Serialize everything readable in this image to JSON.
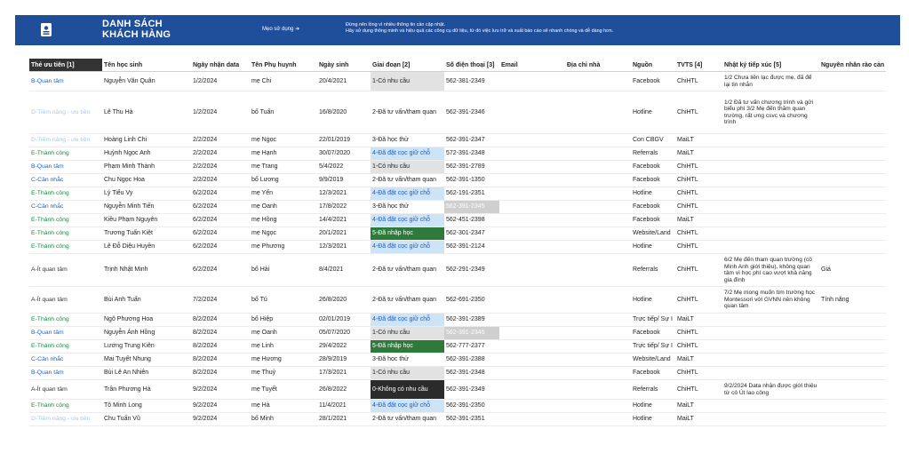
{
  "banner": {
    "title_line1": "DANH SÁCH",
    "title_line2": "KHÁCH HÀNG",
    "tip": "Mẹo sử dụng ➜",
    "note1": "Đừng nên lồng vì nhiều thông tin cần cập nhật.",
    "note2": "Hãy sử dụng thông minh và hiệu quả các công cụ dữ liệu, từ đó việc lưu trữ và xuất báo cáo sẽ nhanh chóng và dễ dàng hơn.",
    "icon": "contact-card-icon"
  },
  "columns": [
    "Thẻ ưu tiên [1]",
    "Tên học sinh",
    "Ngày nhận data",
    "Tên Phụ huynh",
    "Ngày sinh",
    "Giai đoạn [2]",
    "Số điện thoại [3]",
    "Email",
    "Địa chỉ nhà",
    "Nguồn",
    "TVTS [4]",
    "Nhật ký tiếp xúc [5]",
    "Nguyên nhân rào cản"
  ],
  "colors": {
    "priority_blue": "#1a5fd1",
    "priority_green": "#1b8a3f",
    "priority_light": "#a8c6e8",
    "stage_deposit": "#cde3f6",
    "stage_enrolled": "#2f7a3a",
    "banner": "#1f4e9a"
  },
  "rows": [
    {
      "priority": "B-Quan tâm",
      "pclass": "blue",
      "student": "Nguyễn Văn Quân",
      "date": "1/2/2024",
      "parent": "mẹ Chi",
      "dob": "20/4/2021",
      "stage": "1-Có nhu cầu",
      "sclass": "gray",
      "phone": "562-381-2349",
      "phclass": "",
      "source": "Facebook",
      "tvts": "ChiHTL",
      "log": "1/2 Chưa liên lạc được mẹ, đã để lại tin nhắn",
      "reason": "",
      "h": 22
    },
    {
      "priority": "D-Tiềm năng - ưu tiên",
      "pclass": "light",
      "student": "Lê Thu Hà",
      "date": "1/2/2024",
      "parent": "bố Tuấn",
      "dob": "16/8/2020",
      "stage": "2-Đã tư vấn/tham quan",
      "sclass": "",
      "phone": "562-391-2346",
      "phclass": "",
      "source": "Hotline",
      "tvts": "ChiHTL",
      "log": "1/2 Đã tư vấn chương trình và gửi biểu phí 3/2 Mẹ đến thăm quan trường, rất ưng csvc và chương trình",
      "reason": "",
      "h": 48
    },
    {
      "priority": "D-Tiềm năng - ưu tiên",
      "pclass": "light",
      "student": "Hoàng Linh Chi",
      "date": "2/2/2024",
      "parent": "mẹ Ngọc",
      "dob": "22/01/2019",
      "stage": "3-Đã học thử",
      "sclass": "",
      "phone": "562-391-2347",
      "phclass": "",
      "source": "Con CBGV",
      "tvts": "MaiLT",
      "log": "",
      "reason": "",
      "h": 15
    },
    {
      "priority": "E-Thành công",
      "pclass": "green",
      "student": "Huỳnh Ngọc Anh",
      "date": "2/2/2024",
      "parent": "mẹ Hạnh",
      "dob": "30/07/2020",
      "stage": "4-Đã đặt cọc giữ chỗ",
      "sclass": "lightblue",
      "phone": "572-391-2348",
      "phclass": "",
      "source": "Referrals",
      "tvts": "MaiLT",
      "log": "",
      "reason": "",
      "h": 15
    },
    {
      "priority": "B-Quan tâm",
      "pclass": "blue",
      "student": "Phạm Minh Thành",
      "date": "2/2/2024",
      "parent": "mẹ Trang",
      "dob": "5/4/2022",
      "stage": "1-Có nhu cầu",
      "sclass": "gray",
      "phone": "562-391-2789",
      "phclass": "",
      "source": "Facebook",
      "tvts": "ChiHTL",
      "log": "",
      "reason": "",
      "h": 15
    },
    {
      "priority": "C-Cân nhắc",
      "pclass": "blue",
      "student": "Chu Ngọc Hoa",
      "date": "2/2/2024",
      "parent": "bố Lương",
      "dob": "9/9/2019",
      "stage": "2-Đã tư vấn/tham quan",
      "sclass": "",
      "phone": "562-391-1350",
      "phclass": "",
      "source": "Facebook",
      "tvts": "ChiHTL",
      "log": "",
      "reason": "",
      "h": 15
    },
    {
      "priority": "E-Thành công",
      "pclass": "green",
      "student": "Lý Tiểu Vy",
      "date": "6/2/2024",
      "parent": "mẹ Yến",
      "dob": "12/3/2021",
      "stage": "4-Đã đặt cọc giữ chỗ",
      "sclass": "lightblue",
      "phone": "562-191-2351",
      "phclass": "",
      "source": "Hotline",
      "tvts": "ChiHTL",
      "log": "",
      "reason": "",
      "h": 15
    },
    {
      "priority": "C-Cân nhắc",
      "pclass": "blue",
      "student": "Nguyễn Minh Tiến",
      "date": "6/2/2024",
      "parent": "mẹ Oanh",
      "dob": "17/8/2022",
      "stage": "3-Đã học thử",
      "sclass": "",
      "phone": "562-391-2345",
      "phclass": "gray",
      "source": "Facebook",
      "tvts": "ChiHTL",
      "log": "",
      "reason": "",
      "h": 15
    },
    {
      "priority": "E-Thành công",
      "pclass": "green",
      "student": "Kiều Phạm Nguyên",
      "date": "6/2/2024",
      "parent": "mẹ Hồng",
      "dob": "14/4/2021",
      "stage": "4-Đã đặt cọc giữ chỗ",
      "sclass": "lightblue",
      "phone": "562-451-2398",
      "phclass": "",
      "source": "Facebook",
      "tvts": "MaiLT",
      "log": "",
      "reason": "",
      "h": 15
    },
    {
      "priority": "E-Thành công",
      "pclass": "green",
      "student": "Trương Tuấn Kiệt",
      "date": "6/2/2024",
      "parent": "mẹ Ngọc",
      "dob": "20/1/2021",
      "stage": "5-Đã nhập học",
      "sclass": "green",
      "phone": "562-301-2347",
      "phclass": "",
      "source": "Website/Land",
      "tvts": "ChiHTL",
      "log": "",
      "reason": "",
      "h": 15
    },
    {
      "priority": "E-Thành công",
      "pclass": "green",
      "student": "Lê Đỗ Diệu Huyền",
      "date": "6/2/2024",
      "parent": "mẹ Phương",
      "dob": "12/3/2021",
      "stage": "4-Đã đặt cọc giữ chỗ",
      "sclass": "lightblue",
      "phone": "562-391-2124",
      "phclass": "",
      "source": "Hotline",
      "tvts": "ChiHTL",
      "log": "",
      "reason": "",
      "h": 15
    },
    {
      "priority": "A-Ít quan tâm",
      "pclass": "dark",
      "student": "Trịnh Nhật Minh",
      "date": "6/2/2024",
      "parent": "bố Hải",
      "dob": "8/4/2021",
      "stage": "2-Đã tư vấn/tham quan",
      "sclass": "",
      "phone": "562-291-2349",
      "phclass": "",
      "source": "Referrals",
      "tvts": "ChiHTL",
      "log": "6/2 Mẹ đến tham quan trường (cô Minh Anh giới thiệu), không quan tâm vì học phí cao vượt khả năng gia đình",
      "reason": "Giá",
      "h": 37
    },
    {
      "priority": "A-Ít quan tâm",
      "pclass": "dark",
      "student": "Bùi Anh Tuấn",
      "date": "7/2/2024",
      "parent": "bố Tú",
      "dob": "26/8/2020",
      "stage": "2-Đã tư vấn/tham quan",
      "sclass": "",
      "phone": "562-691-2350",
      "phclass": "",
      "source": "Hotline",
      "tvts": "ChiHTL",
      "log": "7/2 Mẹ mong muốn tìm trường học Montessori với GVNN nên không quan tâm",
      "reason": "Tính năng",
      "h": 30
    },
    {
      "priority": "E-Thành công",
      "pclass": "green",
      "student": "Ngô Phương Hoa",
      "date": "8/2/2024",
      "parent": "bố Hiệp",
      "dob": "02/01/2019",
      "stage": "4-Đã đặt cọc giữ chỗ",
      "sclass": "lightblue",
      "phone": "562-391-2389",
      "phclass": "",
      "source": "Trực tiếp/ Sự I",
      "tvts": "MaiLT",
      "log": "",
      "reason": "",
      "h": 15
    },
    {
      "priority": "B-Quan tâm",
      "pclass": "blue",
      "student": "Nguyễn Ánh Hồng",
      "date": "8/2/2024",
      "parent": "mẹ Oanh",
      "dob": "05/07/2020",
      "stage": "1-Có nhu cầu",
      "sclass": "gray",
      "phone": "562-391-2345",
      "phclass": "gray",
      "source": "Facebook",
      "tvts": "ChiHTL",
      "log": "",
      "reason": "",
      "h": 15
    },
    {
      "priority": "E-Thành công",
      "pclass": "green",
      "student": "Lương Trung Kiên",
      "date": "8/2/2024",
      "parent": "mẹ Linh",
      "dob": "29/4/2022",
      "stage": "5-Đã nhập học",
      "sclass": "green",
      "phone": "562-777-2377",
      "phclass": "",
      "source": "Trực tiếp/ Sự I",
      "tvts": "ChiHTL",
      "log": "",
      "reason": "",
      "h": 15
    },
    {
      "priority": "C-Cân nhắc",
      "pclass": "blue",
      "student": "Mai Tuyết Nhung",
      "date": "8/2/2024",
      "parent": "mẹ Hương",
      "dob": "28/9/2019",
      "stage": "3-Đã học thử",
      "sclass": "",
      "phone": "562-391-2388",
      "phclass": "",
      "source": "Website/Land",
      "tvts": "MaiLT",
      "log": "",
      "reason": "",
      "h": 15
    },
    {
      "priority": "B-Quan tâm",
      "pclass": "blue",
      "student": "Bùi Lê An Nhiên",
      "date": "8/2/2024",
      "parent": "mẹ Thuỷ",
      "dob": "17/3/2021",
      "stage": "1-Có nhu cầu",
      "sclass": "gray",
      "phone": "562-391-2348",
      "phclass": "",
      "source": "Facebook",
      "tvts": "ChiHTL",
      "log": "",
      "reason": "",
      "h": 15
    },
    {
      "priority": "A-Ít quan tâm",
      "pclass": "dark",
      "student": "Trần Phương Hà",
      "date": "9/2/2024",
      "parent": "mẹ Tuyết",
      "dob": "26/8/2022",
      "stage": "0-Không có nhu cầu",
      "sclass": "black",
      "phone": "562-391-2349",
      "phclass": "",
      "source": "Referrals",
      "tvts": "ChiHTL",
      "log": "9/2/2024 Data nhận được giới thiệu từ cô Út lao công",
      "reason": "",
      "h": 22
    },
    {
      "priority": "E-Thành công",
      "pclass": "green",
      "student": "Tô Minh Long",
      "date": "9/2/2024",
      "parent": "mẹ Hà",
      "dob": "11/4/2021",
      "stage": "4-Đã đặt cọc giữ chỗ",
      "sclass": "lightblue",
      "phone": "562-391-2350",
      "phclass": "",
      "source": "Hotline",
      "tvts": "MaiLT",
      "log": "",
      "reason": "",
      "h": 15
    },
    {
      "priority": "D-Tiềm năng - ưu tiên",
      "pclass": "light",
      "student": "Chu Tuấn Vũ",
      "date": "9/2/2024",
      "parent": "bố Minh",
      "dob": "28/1/2021",
      "stage": "2-Đã tư vấn/tham quan",
      "sclass": "",
      "phone": "562-391-2351",
      "phclass": "",
      "source": "Hotline",
      "tvts": "MaiLT",
      "log": "",
      "reason": "",
      "h": 15
    }
  ]
}
